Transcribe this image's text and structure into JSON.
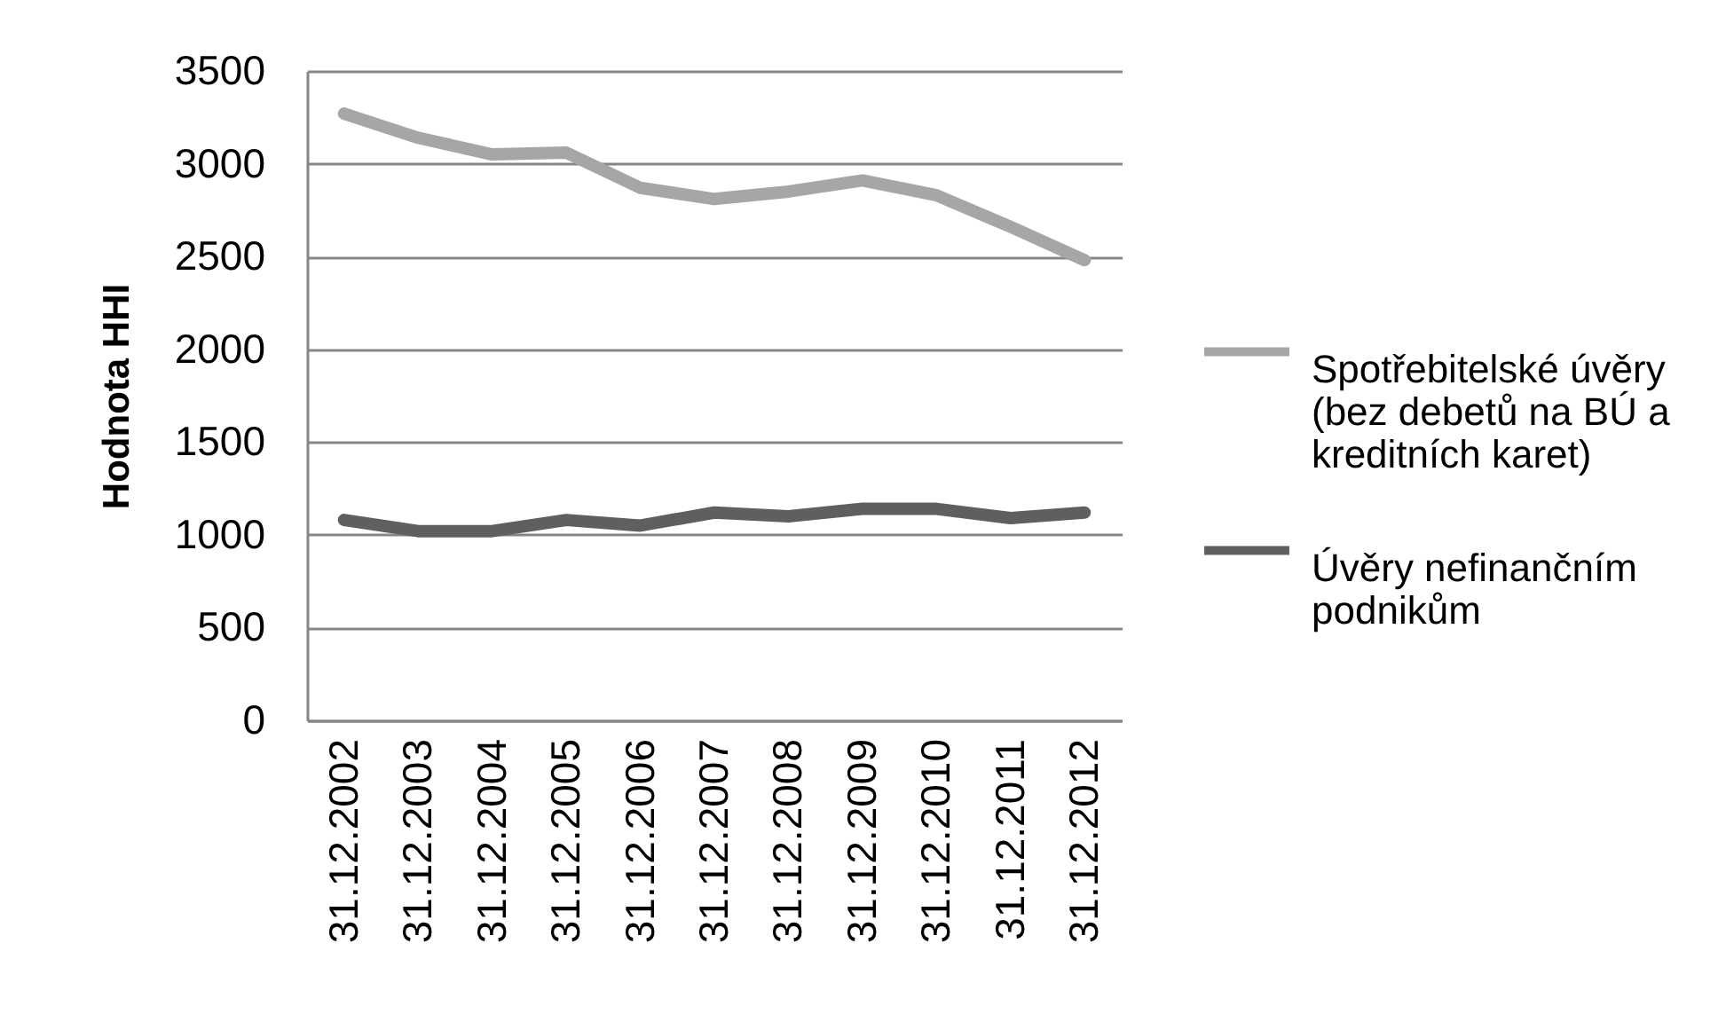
{
  "chart_data": {
    "type": "line",
    "ylabel": "Hodnota HHI",
    "categories": [
      "31.12.2002",
      "31.12.2003",
      "31.12.2004",
      "31.12.2005",
      "31.12.2006",
      "31.12.2007",
      "31.12.2008",
      "31.12.2009",
      "31.12.2010",
      "31.12.2011",
      "31.12.2012"
    ],
    "series": [
      {
        "name": "Spotřebitelské úvěry (bez debetů na BÚ a kreditních karet)",
        "color": "#a6a6a6",
        "values": [
          3270,
          3140,
          3050,
          3060,
          2870,
          2810,
          2850,
          2910,
          2830,
          2660,
          2480
        ]
      },
      {
        "name": "Úvěry nefinančním podnikům",
        "color": "#5f5f5f",
        "values": [
          1080,
          1020,
          1020,
          1080,
          1050,
          1120,
          1100,
          1140,
          1140,
          1090,
          1120
        ]
      }
    ],
    "ylim": [
      0,
      3500
    ],
    "yticks": [
      0,
      500,
      1000,
      1500,
      2000,
      2500,
      3000,
      3500
    ],
    "grid": "y",
    "legend": "right",
    "marker": "none",
    "line_style": "solid"
  }
}
